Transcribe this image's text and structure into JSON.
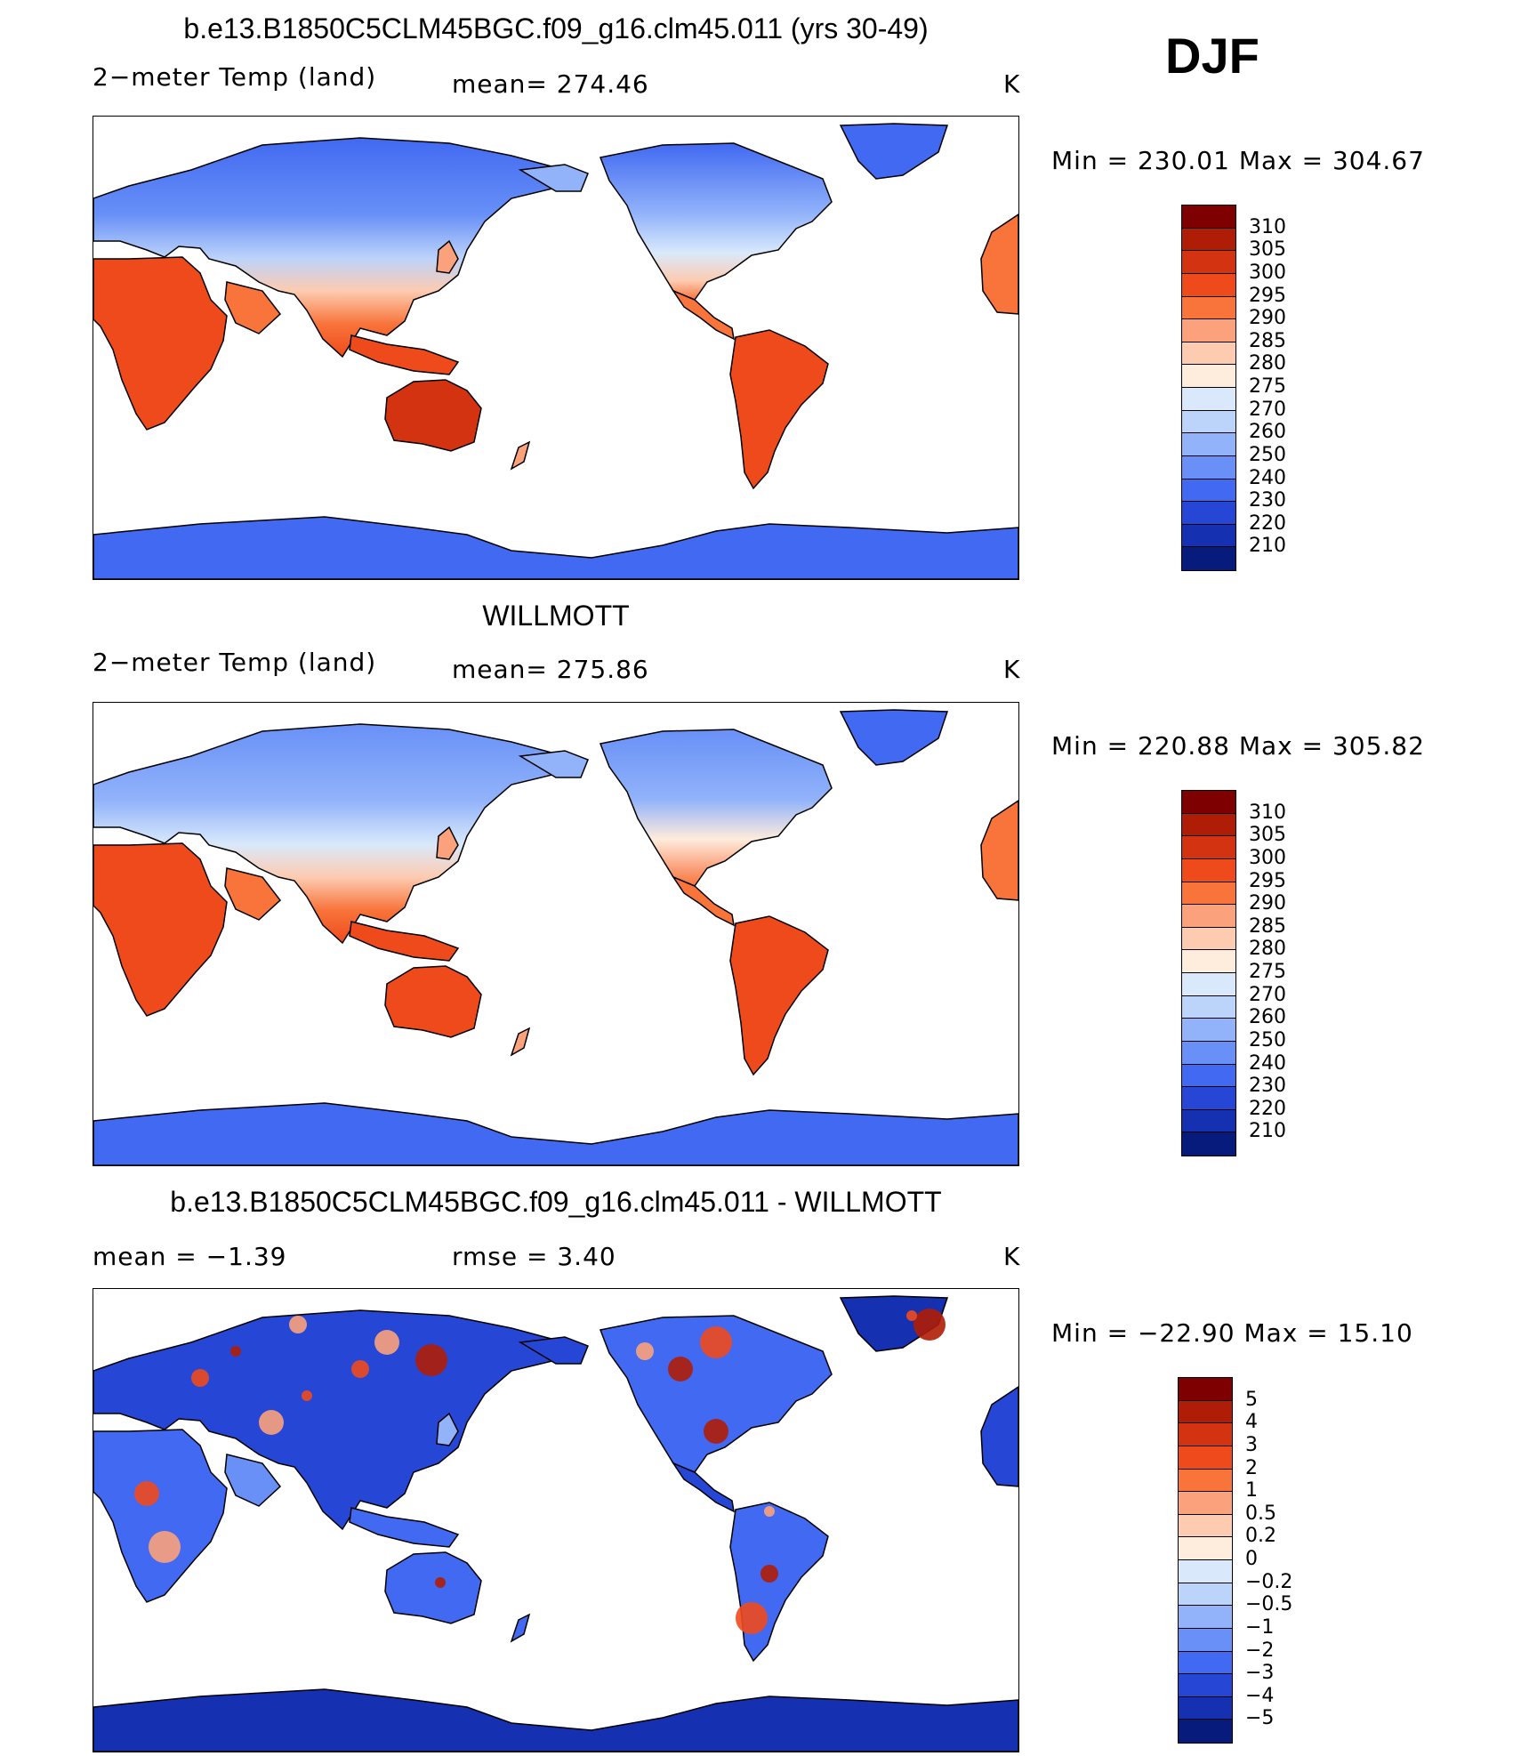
{
  "season": "DJF",
  "panels": [
    {
      "title": "b.e13.B1850C5CLM45BGC.f09_g16.clm45.011 (yrs 30-49)",
      "left_label": "2−meter Temp (land)",
      "center_label": "mean=  274.46",
      "unit": "K",
      "minmax": "Min  =  230.01  Max  =  304.67",
      "colorbar": "abs"
    },
    {
      "title": "WILLMOTT",
      "left_label": "2−meter Temp (land)",
      "center_label": "mean=  275.86",
      "unit": "K",
      "minmax": "Min  =  220.88  Max  =  305.82",
      "colorbar": "abs"
    },
    {
      "title": "b.e13.B1850C5CLM45BGC.f09_g16.clm45.011 - WILLMOTT",
      "left_label": "mean  =     −1.39",
      "center_label": "rmse  =      3.40",
      "unit": "K",
      "minmax": "Min  =  −22.90  Max  =     15.10",
      "colorbar": "diff"
    }
  ],
  "colorbars": {
    "abs": {
      "labels": [
        "310",
        "305",
        "300",
        "295",
        "290",
        "285",
        "280",
        "275",
        "270",
        "260",
        "250",
        "240",
        "230",
        "220",
        "210"
      ],
      "colors": [
        "#7f0000",
        "#b01d06",
        "#d43312",
        "#ef4a1c",
        "#f8743b",
        "#fba27c",
        "#fdcbb0",
        "#feecdd",
        "#d9e9fb",
        "#bcd3fa",
        "#92b3fa",
        "#6890f7",
        "#4169f1",
        "#2646d6",
        "#1530b0",
        "#071b7c"
      ]
    },
    "diff": {
      "labels": [
        "5",
        "4",
        "3",
        "2",
        "1",
        "0.5",
        "0.2",
        "0",
        "−0.2",
        "−0.5",
        "−1",
        "−2",
        "−3",
        "−4",
        "−5"
      ],
      "colors": [
        "#7f0000",
        "#b01d06",
        "#d43312",
        "#ef4a1c",
        "#f8743b",
        "#fba27c",
        "#fdcbb0",
        "#feecdd",
        "#d9e9fb",
        "#bcd3fa",
        "#92b3fa",
        "#6890f7",
        "#4169f1",
        "#2646d6",
        "#1530b0",
        "#071b7c"
      ]
    }
  }
}
